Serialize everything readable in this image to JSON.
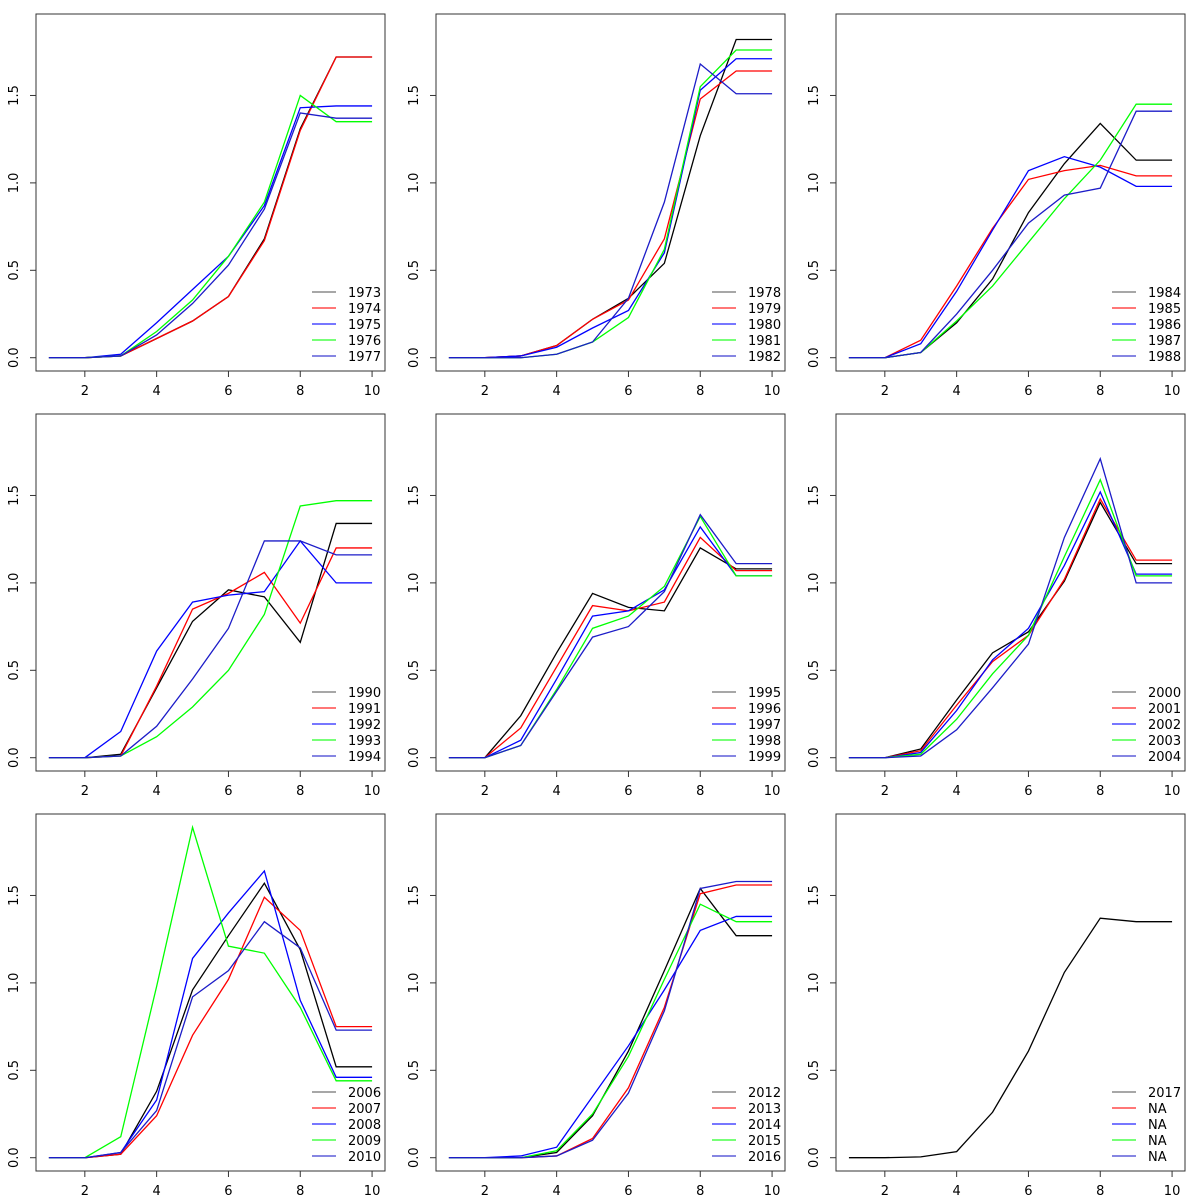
{
  "figure": {
    "layout": "3x3 grid of line plots",
    "palette": [
      "#000000",
      "#ff0000",
      "#0000ff",
      "#00ff00",
      "#1c1cc8"
    ]
  },
  "chart_data": [
    {
      "type": "line",
      "title": "",
      "xlabel": "",
      "ylabel": "",
      "xlim": [
        0.64,
        10.36
      ],
      "ylim": [
        -0.076,
        1.966
      ],
      "xticks": [
        2,
        4,
        6,
        8,
        10
      ],
      "yticks": [
        "0.0",
        "0.5",
        "1.0",
        "1.5"
      ],
      "legend_position": "bottom-right",
      "x": [
        1,
        2,
        3,
        4,
        5,
        6,
        7,
        8,
        9,
        10
      ],
      "series": [
        {
          "name": "1973",
          "values": [
            0,
            0,
            0.01,
            0.11,
            0.21,
            0.35,
            0.68,
            1.31,
            1.72,
            1.72
          ]
        },
        {
          "name": "1974",
          "values": [
            0,
            0,
            0.01,
            0.11,
            0.21,
            0.35,
            0.67,
            1.3,
            1.72,
            1.72
          ]
        },
        {
          "name": "1975",
          "values": [
            0,
            0,
            0.02,
            0.2,
            0.39,
            0.58,
            0.87,
            1.43,
            1.44,
            1.44
          ]
        },
        {
          "name": "1976",
          "values": [
            0,
            0,
            0.01,
            0.15,
            0.33,
            0.58,
            0.89,
            1.5,
            1.35,
            1.35
          ]
        },
        {
          "name": "1977",
          "values": [
            0,
            0,
            0.01,
            0.13,
            0.31,
            0.53,
            0.85,
            1.4,
            1.37,
            1.37
          ]
        }
      ]
    },
    {
      "type": "line",
      "title": "",
      "xlabel": "",
      "ylabel": "",
      "xlim": [
        0.64,
        10.36
      ],
      "ylim": [
        -0.076,
        1.966
      ],
      "xticks": [
        2,
        4,
        6,
        8,
        10
      ],
      "yticks": [
        "0.0",
        "0.5",
        "1.0",
        "1.5"
      ],
      "legend_position": "bottom-right",
      "x": [
        1,
        2,
        3,
        4,
        5,
        6,
        7,
        8,
        9,
        10
      ],
      "series": [
        {
          "name": "1978",
          "values": [
            0,
            0,
            0.01,
            0.07,
            0.22,
            0.34,
            0.54,
            1.27,
            1.82,
            1.82
          ]
        },
        {
          "name": "1979",
          "values": [
            0,
            0,
            0.01,
            0.07,
            0.22,
            0.33,
            0.68,
            1.48,
            1.64,
            1.64
          ]
        },
        {
          "name": "1980",
          "values": [
            0,
            0,
            0.01,
            0.06,
            0.17,
            0.27,
            0.6,
            1.53,
            1.71,
            1.71
          ]
        },
        {
          "name": "1981",
          "values": [
            0,
            0,
            0.0,
            0.02,
            0.09,
            0.23,
            0.62,
            1.55,
            1.76,
            1.76
          ]
        },
        {
          "name": "1982",
          "values": [
            0,
            0,
            0.0,
            0.02,
            0.09,
            0.34,
            0.89,
            1.68,
            1.51,
            1.51
          ]
        }
      ]
    },
    {
      "type": "line",
      "title": "",
      "xlabel": "",
      "ylabel": "",
      "xlim": [
        0.64,
        10.36
      ],
      "ylim": [
        -0.076,
        1.966
      ],
      "xticks": [
        2,
        4,
        6,
        8,
        10
      ],
      "yticks": [
        "0.0",
        "0.5",
        "1.0",
        "1.5"
      ],
      "legend_position": "bottom-right",
      "x": [
        1,
        2,
        3,
        4,
        5,
        6,
        7,
        8,
        9,
        10
      ],
      "series": [
        {
          "name": "1984",
          "values": [
            0,
            0,
            0.03,
            0.2,
            0.45,
            0.83,
            1.11,
            1.34,
            1.13,
            1.13
          ]
        },
        {
          "name": "1985",
          "values": [
            0,
            0,
            0.1,
            0.41,
            0.74,
            1.02,
            1.07,
            1.1,
            1.04,
            1.04
          ]
        },
        {
          "name": "1986",
          "values": [
            0,
            0,
            0.08,
            0.38,
            0.73,
            1.07,
            1.15,
            1.09,
            0.98,
            0.98
          ]
        },
        {
          "name": "1987",
          "values": [
            0,
            0,
            0.03,
            0.21,
            0.41,
            0.66,
            0.91,
            1.13,
            1.45,
            1.45
          ]
        },
        {
          "name": "1988",
          "values": [
            0,
            0,
            0.03,
            0.25,
            0.5,
            0.77,
            0.93,
            0.97,
            1.41,
            1.41
          ]
        }
      ]
    },
    {
      "type": "line",
      "title": "",
      "xlabel": "",
      "ylabel": "",
      "xlim": [
        0.64,
        10.36
      ],
      "ylim": [
        -0.076,
        1.966
      ],
      "xticks": [
        2,
        4,
        6,
        8,
        10
      ],
      "yticks": [
        "0.0",
        "0.5",
        "1.0",
        "1.5"
      ],
      "legend_position": "bottom-right",
      "x": [
        1,
        2,
        3,
        4,
        5,
        6,
        7,
        8,
        9,
        10
      ],
      "series": [
        {
          "name": "1990",
          "values": [
            0,
            0,
            0.02,
            0.4,
            0.78,
            0.96,
            0.92,
            0.66,
            1.34,
            1.34
          ]
        },
        {
          "name": "1991",
          "values": [
            0,
            0,
            0.01,
            0.41,
            0.85,
            0.94,
            1.06,
            0.77,
            1.2,
            1.2
          ]
        },
        {
          "name": "1992",
          "values": [
            0,
            0,
            0.15,
            0.61,
            0.89,
            0.93,
            0.95,
            1.24,
            1.0,
            1.0
          ]
        },
        {
          "name": "1993",
          "values": [
            0,
            0,
            0.01,
            0.12,
            0.29,
            0.5,
            0.82,
            1.44,
            1.47,
            1.47
          ]
        },
        {
          "name": "1994",
          "values": [
            0,
            0,
            0.01,
            0.18,
            0.45,
            0.74,
            1.24,
            1.24,
            1.16,
            1.16
          ]
        }
      ]
    },
    {
      "type": "line",
      "title": "",
      "xlabel": "",
      "ylabel": "",
      "xlim": [
        0.64,
        10.36
      ],
      "ylim": [
        -0.076,
        1.966
      ],
      "xticks": [
        2,
        4,
        6,
        8,
        10
      ],
      "yticks": [
        "0.0",
        "0.5",
        "1.0",
        "1.5"
      ],
      "legend_position": "bottom-right",
      "x": [
        1,
        2,
        3,
        4,
        5,
        6,
        7,
        8,
        9,
        10
      ],
      "series": [
        {
          "name": "1995",
          "values": [
            0,
            0,
            0.24,
            0.6,
            0.94,
            0.86,
            0.84,
            1.2,
            1.08,
            1.08
          ]
        },
        {
          "name": "1996",
          "values": [
            0,
            0,
            0.17,
            0.52,
            0.87,
            0.84,
            0.89,
            1.26,
            1.07,
            1.07
          ]
        },
        {
          "name": "1997",
          "values": [
            0,
            0,
            0.1,
            0.45,
            0.81,
            0.84,
            0.96,
            1.32,
            1.04,
            1.04
          ]
        },
        {
          "name": "1998",
          "values": [
            0,
            0,
            0.07,
            0.39,
            0.74,
            0.81,
            0.98,
            1.38,
            1.04,
            1.04
          ]
        },
        {
          "name": "1999",
          "values": [
            0,
            0,
            0.07,
            0.38,
            0.69,
            0.75,
            0.95,
            1.39,
            1.11,
            1.11
          ]
        }
      ]
    },
    {
      "type": "line",
      "title": "",
      "xlabel": "",
      "ylabel": "",
      "xlim": [
        0.64,
        10.36
      ],
      "ylim": [
        -0.076,
        1.966
      ],
      "xticks": [
        2,
        4,
        6,
        8,
        10
      ],
      "yticks": [
        "0.0",
        "0.5",
        "1.0",
        "1.5"
      ],
      "legend_position": "bottom-right",
      "x": [
        1,
        2,
        3,
        4,
        5,
        6,
        7,
        8,
        9,
        10
      ],
      "series": [
        {
          "name": "2000",
          "values": [
            0,
            0,
            0.05,
            0.33,
            0.6,
            0.72,
            1.01,
            1.46,
            1.11,
            1.11
          ]
        },
        {
          "name": "2001",
          "values": [
            0,
            0,
            0.04,
            0.3,
            0.55,
            0.7,
            1.02,
            1.48,
            1.13,
            1.13
          ]
        },
        {
          "name": "2002",
          "values": [
            0,
            0,
            0.03,
            0.27,
            0.56,
            0.74,
            1.1,
            1.52,
            1.05,
            1.05
          ]
        },
        {
          "name": "2003",
          "values": [
            0,
            0,
            0.02,
            0.22,
            0.48,
            0.7,
            1.15,
            1.59,
            1.04,
            1.04
          ]
        },
        {
          "name": "2004",
          "values": [
            0,
            0,
            0.01,
            0.16,
            0.4,
            0.65,
            1.26,
            1.71,
            1.0,
            1.0
          ]
        }
      ]
    },
    {
      "type": "line",
      "title": "",
      "xlabel": "",
      "ylabel": "",
      "xlim": [
        0.64,
        10.36
      ],
      "ylim": [
        -0.076,
        1.966
      ],
      "xticks": [
        2,
        4,
        6,
        8,
        10
      ],
      "yticks": [
        "0.0",
        "0.5",
        "1.0",
        "1.5"
      ],
      "legend_position": "bottom-right",
      "x": [
        1,
        2,
        3,
        4,
        5,
        6,
        7,
        8,
        9,
        10
      ],
      "series": [
        {
          "name": "2006",
          "values": [
            0,
            0,
            0.02,
            0.38,
            0.96,
            1.27,
            1.57,
            1.19,
            0.52,
            0.52
          ]
        },
        {
          "name": "2007",
          "values": [
            0,
            0,
            0.02,
            0.24,
            0.7,
            1.02,
            1.49,
            1.3,
            0.75,
            0.75
          ]
        },
        {
          "name": "2008",
          "values": [
            0,
            0,
            0.03,
            0.33,
            1.14,
            1.4,
            1.64,
            0.9,
            0.46,
            0.46
          ]
        },
        {
          "name": "2009",
          "values": [
            0,
            0,
            0.12,
            0.98,
            1.89,
            1.21,
            1.17,
            0.86,
            0.44,
            0.44
          ]
        },
        {
          "name": "2010",
          "values": [
            0,
            0,
            0.03,
            0.27,
            0.92,
            1.07,
            1.35,
            1.2,
            0.73,
            0.73
          ]
        }
      ]
    },
    {
      "type": "line",
      "title": "",
      "xlabel": "",
      "ylabel": "",
      "xlim": [
        0.64,
        10.36
      ],
      "ylim": [
        -0.076,
        1.966
      ],
      "xticks": [
        2,
        4,
        6,
        8,
        10
      ],
      "yticks": [
        "0.0",
        "0.5",
        "1.0",
        "1.5"
      ],
      "legend_position": "bottom-right",
      "x": [
        1,
        2,
        3,
        4,
        5,
        6,
        7,
        8,
        9,
        10
      ],
      "series": [
        {
          "name": "2012",
          "values": [
            0,
            0,
            0.0,
            0.03,
            0.24,
            0.61,
            1.07,
            1.54,
            1.27,
            1.27
          ]
        },
        {
          "name": "2013",
          "values": [
            0,
            0,
            0.0,
            0.01,
            0.11,
            0.4,
            0.86,
            1.51,
            1.56,
            1.56
          ]
        },
        {
          "name": "2014",
          "values": [
            0,
            0,
            0.01,
            0.06,
            0.35,
            0.64,
            0.96,
            1.3,
            1.38,
            1.38
          ]
        },
        {
          "name": "2015",
          "values": [
            0,
            0,
            0.0,
            0.04,
            0.25,
            0.58,
            1.02,
            1.45,
            1.35,
            1.35
          ]
        },
        {
          "name": "2016",
          "values": [
            0,
            0,
            0.0,
            0.01,
            0.1,
            0.37,
            0.84,
            1.54,
            1.58,
            1.58
          ]
        }
      ]
    },
    {
      "type": "line",
      "title": "",
      "xlabel": "",
      "ylabel": "",
      "xlim": [
        0.64,
        10.36
      ],
      "ylim": [
        -0.076,
        1.966
      ],
      "xticks": [
        2,
        4,
        6,
        8,
        10
      ],
      "yticks": [
        "0.0",
        "0.5",
        "1.0",
        "1.5"
      ],
      "legend_position": "bottom-right",
      "x": [
        1,
        2,
        3,
        4,
        5,
        6,
        7,
        8,
        9,
        10
      ],
      "series": [
        {
          "name": "2017",
          "values": [
            0,
            0,
            0.005,
            0.035,
            0.26,
            0.61,
            1.06,
            1.37,
            1.35,
            1.35
          ]
        },
        {
          "name": "NA",
          "values": []
        },
        {
          "name": "NA",
          "values": []
        },
        {
          "name": "NA",
          "values": []
        },
        {
          "name": "NA",
          "values": []
        }
      ]
    }
  ]
}
